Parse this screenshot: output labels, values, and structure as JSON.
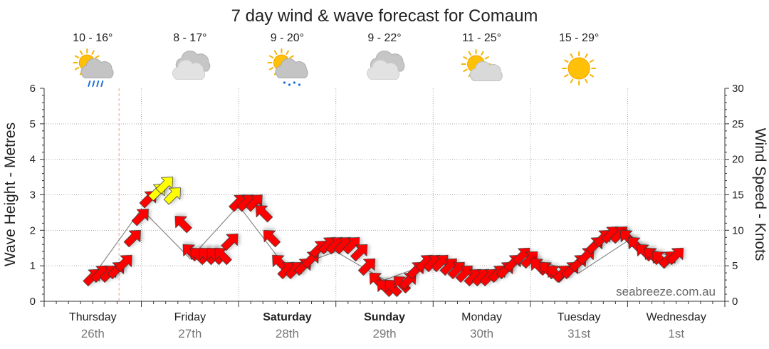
{
  "chart_data": {
    "type": "line",
    "title": "7 day wind & wave forecast for Comaum",
    "ylabel_left": "Wave Height - Metres",
    "ylabel_right": "Wind Speed - Knots",
    "y_left_range": [
      0,
      6
    ],
    "y_left_ticks": [
      "0",
      "1",
      "2",
      "3",
      "4",
      "5",
      "6"
    ],
    "y_right_range": [
      0,
      30
    ],
    "y_right_ticks": [
      "0",
      "5",
      "10",
      "15",
      "20",
      "25",
      "30"
    ],
    "grid": true,
    "watermark": "seabreeze.com.au",
    "days": [
      {
        "name": "Thursday",
        "date": "26th",
        "bold": false,
        "temp": "10 - 16°",
        "icon": "rain-cloud-sun-icon"
      },
      {
        "name": "Friday",
        "date": "27th",
        "bold": false,
        "temp": "8 - 17°",
        "icon": "cloudy-icon"
      },
      {
        "name": "Saturday",
        "date": "28th",
        "bold": true,
        "temp": "9 - 20°",
        "icon": "showers-sun-icon"
      },
      {
        "name": "Sunday",
        "date": "29th",
        "bold": true,
        "temp": "9 - 22°",
        "icon": "cloudy-icon"
      },
      {
        "name": "Monday",
        "date": "30th",
        "bold": false,
        "temp": "11 - 25°",
        "icon": "partly-cloudy-icon"
      },
      {
        "name": "Tuesday",
        "date": "31st",
        "bold": false,
        "temp": "15 - 29°",
        "icon": "sunny-icon"
      },
      {
        "name": "Wednesday",
        "date": "1st",
        "bold": false,
        "temp": "",
        "icon": ""
      }
    ],
    "series": [
      {
        "name": "wind",
        "unit": "knots",
        "x_days": [
          0.0,
          0.08,
          0.17,
          0.25,
          0.33,
          0.42,
          0.5,
          0.58,
          0.67,
          0.75,
          0.83,
          0.92,
          1.0,
          1.08,
          1.17,
          1.25,
          1.33,
          1.42,
          1.5,
          1.58,
          1.67,
          1.75,
          1.83,
          1.92,
          2.0,
          2.08,
          2.17,
          2.25,
          2.33,
          2.42,
          2.5,
          2.58,
          2.67,
          2.75,
          2.83,
          2.92,
          3.0,
          3.08,
          3.17,
          3.25,
          3.33,
          3.42,
          3.5,
          3.58,
          3.67,
          3.75,
          3.83,
          3.92,
          4.0,
          4.08,
          4.17,
          4.25,
          4.33,
          4.42,
          4.5,
          4.58,
          4.67,
          4.75,
          4.83,
          4.92,
          5.0,
          5.08,
          5.17,
          5.25,
          5.33,
          5.42,
          5.5,
          5.58,
          5.67,
          5.75,
          5.83,
          5.92,
          6.0
        ],
        "values": [
          3.5,
          4.0,
          4.0,
          4.5,
          5.5,
          9.0,
          12.0,
          14.5,
          15.5,
          16.5,
          15.0,
          11.0,
          7.0,
          6.5,
          6.5,
          6.5,
          6.5,
          8.5,
          14.0,
          14.0,
          14.0,
          12.5,
          9.0,
          5.5,
          4.5,
          4.5,
          5.0,
          6.0,
          7.5,
          8.0,
          8.0,
          8.0,
          8.0,
          7.0,
          5.0,
          3.0,
          2.0,
          2.0,
          2.5,
          3.0,
          4.5,
          5.5,
          5.5,
          5.5,
          5.0,
          4.5,
          4.0,
          3.5,
          3.5,
          3.5,
          4.0,
          4.5,
          5.5,
          6.5,
          6.0,
          5.0,
          4.5,
          4.0,
          4.0,
          4.5,
          5.5,
          6.5,
          8.0,
          9.0,
          9.5,
          9.5,
          9.0,
          8.0,
          7.0,
          6.5,
          6.0,
          6.0,
          6.5
        ],
        "direction_deg": [
          45,
          45,
          45,
          45,
          45,
          45,
          45,
          45,
          45,
          45,
          45,
          135,
          135,
          135,
          135,
          135,
          135,
          45,
          45,
          45,
          45,
          135,
          135,
          135,
          45,
          45,
          45,
          45,
          45,
          45,
          45,
          45,
          45,
          45,
          45,
          135,
          135,
          135,
          135,
          45,
          45,
          45,
          45,
          45,
          45,
          45,
          45,
          45,
          45,
          45,
          45,
          45,
          45,
          45,
          45,
          135,
          135,
          135,
          45,
          45,
          45,
          45,
          45,
          45,
          45,
          45,
          135,
          135,
          135,
          135,
          135,
          45,
          45
        ],
        "color_by_speed": {
          "below_15": "#ff0000",
          "15_and_above": "#ffff00"
        }
      },
      {
        "name": "wave",
        "unit": "metres",
        "x_days": [
          0.0,
          0.5,
          1.0,
          1.5,
          2.0,
          2.5,
          3.0,
          3.5,
          4.0,
          4.5,
          5.0,
          5.5,
          6.0
        ],
        "values": [
          0.7,
          2.6,
          1.2,
          2.7,
          0.9,
          1.4,
          0.6,
          1.1,
          0.8,
          1.2,
          0.8,
          1.7,
          1.2
        ]
      }
    ],
    "current_time_day": 0.27
  }
}
